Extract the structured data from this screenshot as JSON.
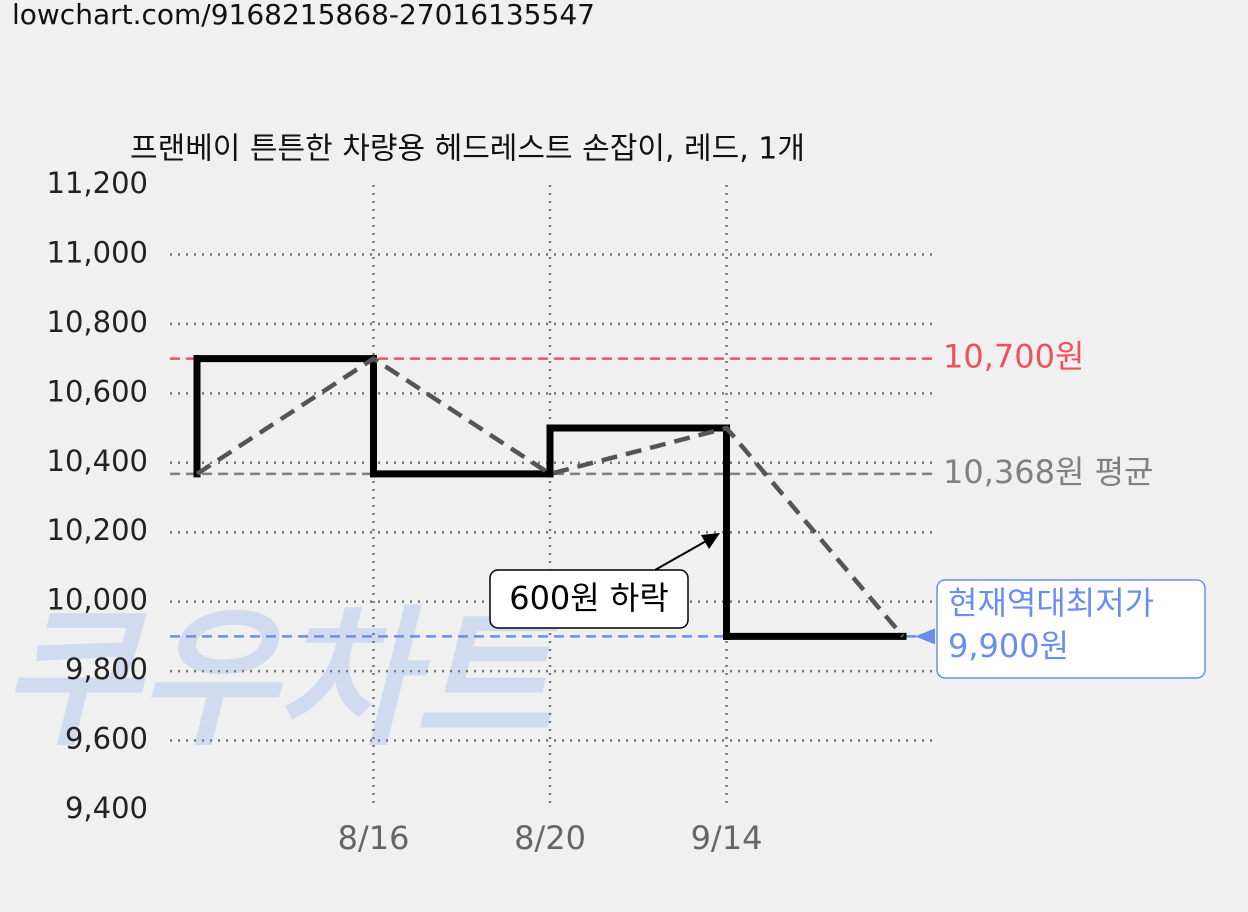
{
  "url": "lowchart.com/9168215868-27016135547",
  "watermark": "쿠우차트",
  "chart_data": {
    "type": "line",
    "title": "프랜베이 튼튼한 차량용 헤드레스트 손잡이, 레드, 1개",
    "categories": [
      null,
      "8/16",
      "8/20",
      "9/14",
      null
    ],
    "series": [
      {
        "color": "#555555",
        "values": [
          10368,
          10700,
          10368,
          10500,
          9900
        ]
      }
    ],
    "step_color": "#000000",
    "ylim": [
      9400,
      11200
    ],
    "yticks": [
      {
        "value": 9400,
        "label": "9,400"
      },
      {
        "value": 9600,
        "label": "9,600"
      },
      {
        "value": 9800,
        "label": "9,800"
      },
      {
        "value": 10000,
        "label": "10,000"
      },
      {
        "value": 10200,
        "label": "10,200"
      },
      {
        "value": 10400,
        "label": "10,400"
      },
      {
        "value": 10600,
        "label": "10,600"
      },
      {
        "value": 10800,
        "label": "10,800"
      },
      {
        "value": 11000,
        "label": "11,000"
      },
      {
        "value": 11200,
        "label": "11,200"
      }
    ],
    "grid": true,
    "reference_lines": [
      {
        "value": 10700,
        "label": "10,700원",
        "color": "#f0505a"
      },
      {
        "value": 10368,
        "label": "10,368원 평균",
        "color": "#808080"
      },
      {
        "value": 9900,
        "name": "현재역대최저가",
        "label": "9,900원",
        "color": "#6a8ef0"
      }
    ],
    "annotation": "600원 하락"
  }
}
